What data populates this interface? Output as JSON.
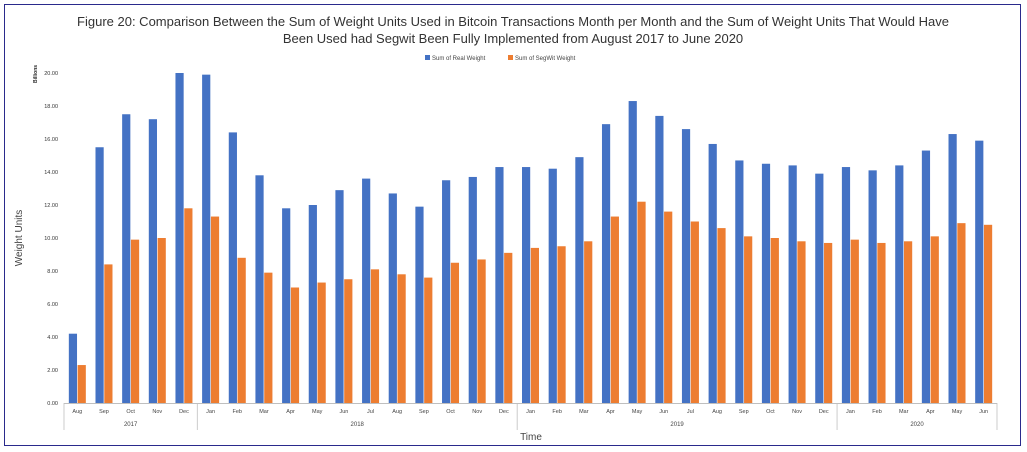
{
  "chart_data": {
    "type": "bar",
    "title_line1": "Figure 20: Comparison Between the Sum of Weight Units Used in Bitcoin Transactions Month per Month and the Sum of Weight Units That Would Have",
    "title_line2": "Been Used had Segwit Been Fully Implemented from August 2017 to June 2020",
    "xlabel": "Time",
    "ylabel": "Weight Units",
    "yunit": "Billions",
    "ylim": [
      0,
      20
    ],
    "yticks": [
      "0.00",
      "2.00",
      "4.00",
      "6.00",
      "8.00",
      "10.00",
      "12.00",
      "14.00",
      "16.00",
      "18.00",
      "20.00"
    ],
    "grid": false,
    "legend_position": "top-center",
    "categories": [
      "Aug",
      "Sep",
      "Oct",
      "Nov",
      "Dec",
      "Jan",
      "Feb",
      "Mar",
      "Apr",
      "May",
      "Jun",
      "Jul",
      "Aug",
      "Sep",
      "Oct",
      "Nov",
      "Dec",
      "Jan",
      "Feb",
      "Mar",
      "Apr",
      "May",
      "Jun",
      "Jul",
      "Aug",
      "Sep",
      "Oct",
      "Nov",
      "Dec",
      "Jan",
      "Feb",
      "Mar",
      "Apr",
      "May",
      "Jun"
    ],
    "groups": [
      {
        "label": "2017",
        "start": 0,
        "end": 4
      },
      {
        "label": "2018",
        "start": 5,
        "end": 16
      },
      {
        "label": "2019",
        "start": 17,
        "end": 28
      },
      {
        "label": "2020",
        "start": 29,
        "end": 34
      }
    ],
    "series": [
      {
        "name": "Sum of Real Weight",
        "color": "#4472C4",
        "values": [
          4.2,
          15.5,
          17.5,
          17.2,
          20.0,
          19.9,
          16.4,
          13.8,
          11.8,
          12.0,
          12.9,
          13.6,
          12.7,
          11.9,
          13.5,
          13.7,
          14.3,
          14.3,
          14.2,
          14.9,
          16.9,
          18.3,
          17.4,
          16.6,
          15.7,
          14.7,
          14.5,
          14.4,
          13.9,
          14.3,
          14.1,
          14.4,
          15.3,
          16.3,
          15.9
        ]
      },
      {
        "name": "Sum of SegWit Weight",
        "color": "#ED7D31",
        "values": [
          2.3,
          8.4,
          9.9,
          10.0,
          11.8,
          11.3,
          8.8,
          7.9,
          7.0,
          7.3,
          7.5,
          8.1,
          7.8,
          7.6,
          8.5,
          8.7,
          9.1,
          9.4,
          9.5,
          9.8,
          11.3,
          12.2,
          11.6,
          11.0,
          10.6,
          10.1,
          10.0,
          9.8,
          9.7,
          9.9,
          9.7,
          9.8,
          10.1,
          10.9,
          10.8
        ]
      }
    ]
  }
}
